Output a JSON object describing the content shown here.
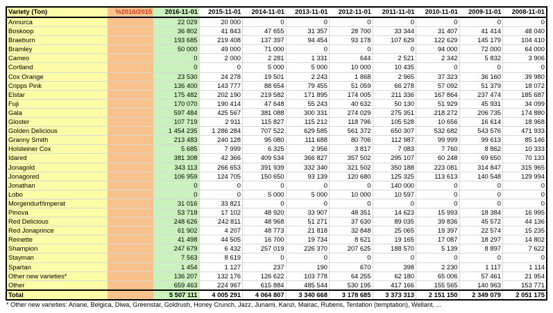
{
  "header": {
    "variety": "Variety (Ton)",
    "pct": "%2016/2015",
    "years": [
      "2016-11-01",
      "2015-11-01",
      "2014-11-01",
      "2013-11-01",
      "2012-11-01",
      "2011-11-01",
      "2010-11-01",
      "2009-11-01",
      "2008-11-01"
    ]
  },
  "rows": [
    {
      "name": "Annurca",
      "pct": "",
      "v": [
        "22 029",
        "20 000",
        "0",
        "0",
        "0",
        "0",
        "0",
        "0",
        "0"
      ]
    },
    {
      "name": "Boskoop",
      "pct": "",
      "v": [
        "36 802",
        "41 843",
        "47 655",
        "31 357",
        "28 700",
        "33 344",
        "31 407",
        "41 414",
        "48 040"
      ]
    },
    {
      "name": "Braeburn",
      "pct": "",
      "v": [
        "193 685",
        "219 408",
        "137 397",
        "94 454",
        "93 178",
        "107 629",
        "122 629",
        "145 179",
        "104 410"
      ]
    },
    {
      "name": "Bramley",
      "pct": "",
      "v": [
        "50 000",
        "49 000",
        "71 000",
        "0",
        "0",
        "0",
        "94 000",
        "72 000",
        "64 000"
      ]
    },
    {
      "name": "Cameo",
      "pct": "",
      "v": [
        "0",
        "2 000",
        "2 281",
        "1 331",
        "644",
        "2 521",
        "2 342",
        "5 832",
        "3 906"
      ]
    },
    {
      "name": "Cortland",
      "pct": "",
      "v": [
        "0",
        "0",
        "5 000",
        "5 000",
        "10 000",
        "10 435",
        "0",
        "0",
        "0"
      ]
    },
    {
      "name": "Cox Orange",
      "pct": "",
      "v": [
        "23 530",
        "24 278",
        "19 501",
        "2 243",
        "1 868",
        "2 965",
        "37 323",
        "36 160",
        "39 980"
      ]
    },
    {
      "name": "Cripps Pink",
      "pct": "",
      "v": [
        "136 400",
        "143 777",
        "88 654",
        "79 455",
        "51 059",
        "66 278",
        "57 092",
        "51 379",
        "18 072"
      ]
    },
    {
      "name": "Elstar",
      "pct": "",
      "v": [
        "175 482",
        "202 190",
        "219 582",
        "171 895",
        "174 005",
        "211 336",
        "167 864",
        "237 474",
        "185 687"
      ]
    },
    {
      "name": "Fuji",
      "pct": "",
      "v": [
        "170 070",
        "190 414",
        "47 648",
        "55 243",
        "40 632",
        "50 130",
        "51 929",
        "45 931",
        "34 099"
      ]
    },
    {
      "name": "Gala",
      "pct": "",
      "v": [
        "597 484",
        "425 567",
        "381 088",
        "300 331",
        "274 029",
        "275 351",
        "218 272",
        "206 735",
        "174 880"
      ]
    },
    {
      "name": "Gloster",
      "pct": "",
      "v": [
        "107 719",
        "2 911",
        "115 827",
        "115 212",
        "118 796",
        "105 528",
        "10 656",
        "16 614",
        "18 968"
      ]
    },
    {
      "name": "Golden Delicious",
      "pct": "",
      "v": [
        "1 454 235",
        "1 286 284",
        "707 522",
        "629 585",
        "561 372",
        "650 307",
        "532 682",
        "543 576",
        "471 933"
      ]
    },
    {
      "name": "Granny Smith",
      "pct": "",
      "v": [
        "213 483",
        "240 128",
        "95 080",
        "111 688",
        "80 706",
        "112 987",
        "99 999",
        "99 613",
        "85 146"
      ]
    },
    {
      "name": "Holsteiner Cox",
      "pct": "",
      "v": [
        "5 685",
        "7 999",
        "6 325",
        "2 956",
        "3 817",
        "7 083",
        "7 760",
        "8 862",
        "10 333"
      ]
    },
    {
      "name": "Idared",
      "pct": "",
      "v": [
        "381 308",
        "42 366",
        "409 534",
        "366 827",
        "357 502",
        "295 107",
        "60 248",
        "69 650",
        "70 133"
      ]
    },
    {
      "name": "Jonagold",
      "pct": "",
      "v": [
        "343 113",
        "266 653",
        "391 939",
        "332 340",
        "321 502",
        "350 188",
        "223 081",
        "314 847",
        "315 965"
      ]
    },
    {
      "name": "Jonagored",
      "pct": "",
      "v": [
        "106 959",
        "124 705",
        "150 650",
        "93 139",
        "120 680",
        "125 325",
        "113 613",
        "140 548",
        "129 994"
      ]
    },
    {
      "name": "Jonathan",
      "pct": "",
      "v": [
        "0",
        "0",
        "0",
        "0",
        "0",
        "140 000",
        "0",
        "0",
        "0"
      ]
    },
    {
      "name": "Lobo",
      "pct": "",
      "v": [
        "0",
        "0",
        "5 000",
        "5 000",
        "10 000",
        "10 597",
        "0",
        "0",
        "0"
      ]
    },
    {
      "name": "Morgendurf/imperat",
      "pct": "",
      "v": [
        "31 016",
        "33 821",
        "0",
        "0",
        "0",
        "0",
        "0",
        "0",
        "0"
      ]
    },
    {
      "name": "Pinova",
      "pct": "",
      "v": [
        "53 718",
        "17 102",
        "48 920",
        "33 907",
        "48 351",
        "14 623",
        "15 993",
        "18 384",
        "16 995"
      ]
    },
    {
      "name": "Red Delicious",
      "pct": "",
      "v": [
        "248 626",
        "242 811",
        "48 968",
        "51 271",
        "37 630",
        "89 035",
        "39 836",
        "45 572",
        "44 136"
      ]
    },
    {
      "name": "Red Jonaprince",
      "pct": "",
      "v": [
        "61 902",
        "4 207",
        "48 773",
        "21 818",
        "32 848",
        "25 065",
        "19 397",
        "22 574",
        "15 235"
      ]
    },
    {
      "name": "Reinette",
      "pct": "",
      "v": [
        "41 498",
        "44 505",
        "16 700",
        "19 734",
        "8 621",
        "19 165",
        "17 087",
        "18 297",
        "14 802"
      ]
    },
    {
      "name": "Shampion",
      "pct": "",
      "v": [
        "247 679",
        "6 432",
        "257 019",
        "226 370",
        "207 625",
        "188 570",
        "5 139",
        "8 897",
        "7 622"
      ]
    },
    {
      "name": "Stayman",
      "pct": "",
      "v": [
        "7 563",
        "8 619",
        "0",
        "0",
        "0",
        "0",
        "0",
        "0",
        "0"
      ]
    },
    {
      "name": "Spartan",
      "pct": "",
      "v": [
        "1 454",
        "1 127",
        "237",
        "190",
        "670",
        "398",
        "2 230",
        "1 117",
        "1 114"
      ]
    },
    {
      "name": "Other new varieties*",
      "pct": "",
      "v": [
        "136 207",
        "132 176",
        "126 622",
        "103 778",
        "64 255",
        "62 180",
        "65 006",
        "57 461",
        "21 954"
      ]
    },
    {
      "name": "Other",
      "pct": "",
      "v": [
        "659 463",
        "224 967",
        "615 884",
        "485 544",
        "530 195",
        "417 166",
        "155 565",
        "140 963",
        "153 771"
      ]
    }
  ],
  "total": {
    "name": "Total",
    "pct": "",
    "v": [
      "5 507 111",
      "4 005 291",
      "4 064 807",
      "3 340 668",
      "3 178 685",
      "3 373 313",
      "2 151 150",
      "2 349 079",
      "2 051 175"
    ]
  },
  "footnote": "* Other new varieties: Ariane, Belgica, Diwa, Greenstar, Goldrush, Honey Crunch, Jazz, Junami, Kanzi, Mairac, Rubens, Tentation (temptation), Wellant, ..."
}
